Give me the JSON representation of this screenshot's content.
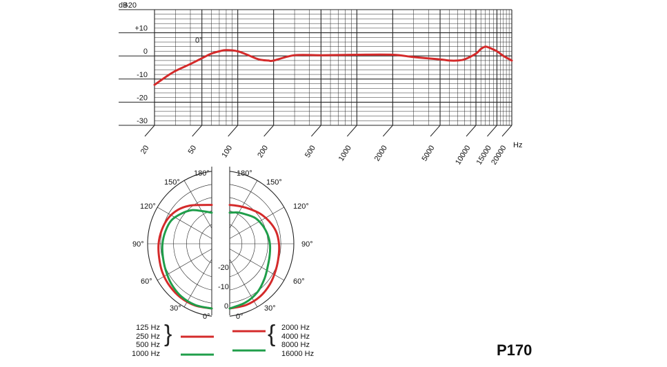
{
  "chart_data": [
    {
      "type": "line",
      "title": "",
      "xlabel": "Hz",
      "ylabel": "dB",
      "xscale": "log",
      "xlim": [
        20,
        20000
      ],
      "ylim": [
        -30,
        20
      ],
      "grid": true,
      "y_ticks": [
        "+20",
        "+10",
        "0",
        "-10",
        "-20",
        "-30"
      ],
      "x_ticks": [
        "20",
        "50",
        "100",
        "200",
        "500",
        "1000",
        "2000",
        "5000",
        "10000",
        "15000",
        "20000"
      ],
      "annotation": "0°",
      "line_color": "#d42a2a",
      "series": [
        {
          "x": [
            20,
            25,
            30,
            40,
            50,
            60,
            70,
            80,
            100,
            120,
            150,
            180,
            200,
            300,
            500,
            1000,
            2000,
            3000,
            5000,
            6000,
            7000,
            8000,
            10000,
            11000,
            12000,
            13000,
            15000,
            17000,
            20000
          ],
          "y": [
            -12.5,
            -9,
            -6.5,
            -3.5,
            -1,
            1,
            2,
            2.5,
            2,
            0.5,
            -1.5,
            -2,
            -2,
            0.3,
            0.3,
            0.5,
            0.5,
            -0.5,
            -1.5,
            -2,
            -2,
            -1.5,
            1,
            3,
            4,
            3.5,
            2,
            0,
            -2
          ]
        }
      ]
    },
    {
      "type": "polar",
      "angle_labels_left": [
        "180°",
        "150°",
        "120°",
        "90°",
        "60°",
        "30°",
        "0°"
      ],
      "angle_labels_right": [
        "180°",
        "150°",
        "120°",
        "90°",
        "60°",
        "30°",
        "0°"
      ],
      "radial_labels": [
        "-20",
        "-10",
        "0"
      ],
      "rlim": [
        -25,
        0
      ],
      "series": [
        {
          "name": "125 Hz 250 Hz 500 Hz 1000 Hz",
          "side": "left",
          "color_red": "#d42a2a",
          "color_green": "#1f9e4a",
          "red_angles": [
            0,
            15,
            30,
            45,
            60,
            75,
            90,
            105,
            120,
            135,
            150,
            165,
            180
          ],
          "red_db": [
            0,
            -0.3,
            -1,
            -2,
            -3,
            -4,
            -4.5,
            -5,
            -5.5,
            -6.5,
            -8,
            -9.5,
            -10
          ],
          "green_angles": [
            0,
            15,
            30,
            45,
            60,
            75,
            90,
            105,
            120,
            135,
            150,
            165,
            180
          ],
          "green_db": [
            0,
            -0.5,
            -1.5,
            -3,
            -4.5,
            -5.5,
            -6,
            -6.5,
            -7,
            -8.5,
            -10,
            -12,
            -13
          ]
        },
        {
          "name": "2000 Hz 4000 Hz 8000 Hz 16000 Hz",
          "side": "right",
          "red_angles": [
            0,
            15,
            30,
            45,
            60,
            75,
            90,
            105,
            120,
            135,
            150,
            165,
            180
          ],
          "red_db": [
            0,
            -0.5,
            -1.5,
            -3,
            -4.5,
            -5.5,
            -6,
            -6.5,
            -7.5,
            -8.5,
            -9.5,
            -10,
            -10
          ],
          "green_angles": [
            0,
            15,
            30,
            45,
            60,
            75,
            90,
            105,
            120,
            135,
            150,
            165,
            180
          ],
          "green_db": [
            0,
            -1.5,
            -3.5,
            -6,
            -8,
            -9,
            -9.5,
            -10,
            -10.5,
            -11,
            -12,
            -12.5,
            -13
          ]
        }
      ]
    }
  ],
  "legend": {
    "left_lines": [
      "125 Hz",
      "250 Hz",
      "500 Hz",
      "1000 Hz"
    ],
    "right_lines": [
      "2000 Hz",
      "4000 Hz",
      "8000 Hz",
      "16000 Hz"
    ]
  },
  "model": "P170"
}
